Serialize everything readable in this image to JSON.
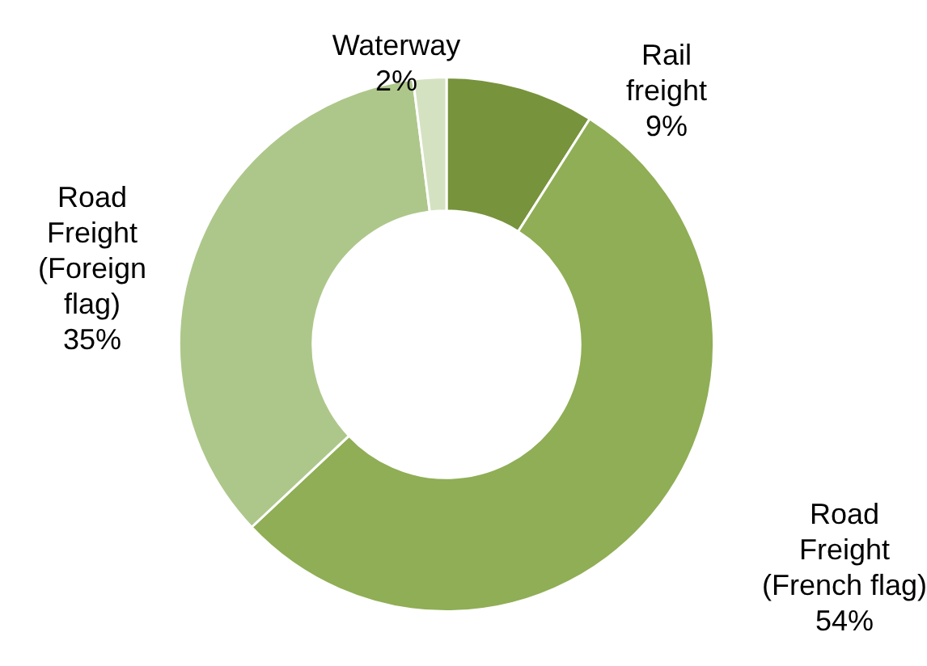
{
  "chart_data": {
    "type": "donut",
    "categories": [
      "Rail freight",
      "Road Freight (French flag)",
      "Road Freight (Foreign flag)",
      "Waterway"
    ],
    "values": [
      9,
      54,
      35,
      2
    ],
    "value_labels": [
      "9%",
      "54%",
      "35%",
      "2%"
    ],
    "colors": [
      "#77933c",
      "#8fae55",
      "#adc78a",
      "#d4e2c1"
    ],
    "legend": false
  }
}
